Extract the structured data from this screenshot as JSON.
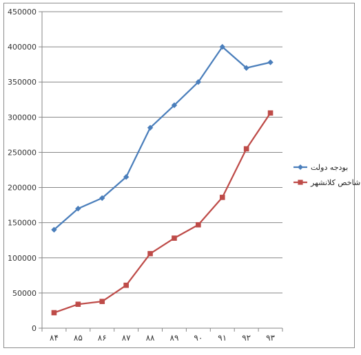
{
  "chart_data": {
    "type": "line",
    "categories": [
      "۸۴",
      "۸۵",
      "۸۶",
      "۸۷",
      "۸۸",
      "۸۹",
      "۹۰",
      "۹۱",
      "۹۲",
      "۹۳"
    ],
    "y_ticks": [
      "0",
      "50000",
      "100000",
      "150000",
      "200000",
      "250000",
      "300000",
      "350000",
      "400000",
      "450000"
    ],
    "ylim": [
      0,
      450000
    ],
    "grid": true,
    "legend_position": "right",
    "series": [
      {
        "name": "بودجه دولت",
        "color": "#4a7ebb",
        "marker": "diamond",
        "values": [
          140000,
          170000,
          185000,
          215000,
          285000,
          317000,
          350000,
          400000,
          370000,
          378000
        ]
      },
      {
        "name": "شاخص کلانشهر",
        "color": "#be4b48",
        "marker": "square",
        "values": [
          22000,
          34000,
          38000,
          61000,
          106000,
          128000,
          147000,
          186000,
          255000,
          306000
        ]
      }
    ]
  }
}
